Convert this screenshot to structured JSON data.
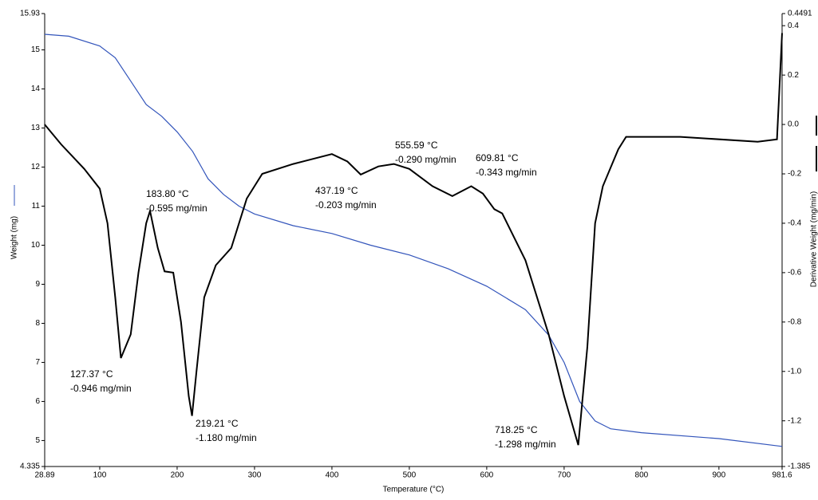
{
  "chart_data": {
    "type": "line",
    "xlabel": "Temperature (°C)",
    "ylabel": "Weight (mg)",
    "y2label": "Derivative Weight (mg/min)",
    "xlim": [
      28.89,
      981.6
    ],
    "xticks": [
      28.89,
      100,
      200,
      300,
      400,
      500,
      600,
      700,
      800,
      900,
      981.6
    ],
    "ylim": [
      4.335,
      15.93
    ],
    "yticks": [
      4.335,
      5,
      6,
      7,
      8,
      9,
      10,
      11,
      12,
      13,
      14,
      15,
      15.93
    ],
    "y2lim": [
      -1.385,
      0.4491
    ],
    "y2ticks": [
      -1.385,
      -1.2,
      {
        "value": -1.0,
        "label": "-1.0"
      },
      -0.8,
      -0.6,
      -0.4,
      -0.2,
      {
        "value": 0.0,
        "label": "0.0"
      },
      0.2,
      0.4,
      0.4491
    ],
    "series": [
      {
        "name": "Weight (mg)",
        "color": "#3355bb",
        "x": [
          28.89,
          60,
          100,
          120,
          140,
          160,
          180,
          200,
          220,
          240,
          260,
          280,
          300,
          350,
          400,
          450,
          500,
          550,
          600,
          650,
          680,
          700,
          720,
          740,
          760,
          800,
          900,
          981.6
        ],
        "values": [
          15.4,
          15.35,
          15.1,
          14.8,
          14.2,
          13.6,
          13.3,
          12.9,
          12.4,
          11.7,
          11.3,
          11.0,
          10.8,
          10.5,
          10.3,
          10.0,
          9.75,
          9.4,
          8.95,
          8.35,
          7.7,
          7.0,
          6.0,
          5.5,
          5.3,
          5.2,
          5.05,
          4.85
        ]
      },
      {
        "name": "Derivative Weight (mg/min)",
        "color": "#000000",
        "axis": "y2",
        "x": [
          28.89,
          50,
          80,
          100,
          110,
          120,
          127.37,
          140,
          150,
          160,
          165,
          175,
          183.8,
          195,
          205,
          215,
          219.21,
          225,
          235,
          250,
          270,
          290,
          310,
          350,
          400,
          420,
          437.19,
          460,
          480,
          500,
          530,
          555.59,
          580,
          595,
          609.81,
          620,
          650,
          680,
          700,
          718.25,
          730,
          740,
          750,
          770,
          780,
          850,
          950,
          975,
          981.6
        ],
        "values": [
          0.0,
          -0.08,
          -0.18,
          -0.26,
          -0.4,
          -0.7,
          -0.946,
          -0.85,
          -0.6,
          -0.4,
          -0.35,
          -0.5,
          -0.595,
          -0.6,
          -0.8,
          -1.1,
          -1.18,
          -1.0,
          -0.7,
          -0.57,
          -0.5,
          -0.3,
          -0.2,
          -0.16,
          -0.12,
          -0.15,
          -0.203,
          -0.17,
          -0.16,
          -0.18,
          -0.25,
          -0.29,
          -0.25,
          -0.28,
          -0.343,
          -0.36,
          -0.55,
          -0.85,
          -1.1,
          -1.298,
          -0.9,
          -0.4,
          -0.25,
          -0.1,
          -0.05,
          -0.05,
          -0.07,
          -0.06,
          0.37
        ]
      }
    ],
    "annotations": [
      {
        "lines": [
          "127.37 °C",
          "-0.946 mg/min"
        ]
      },
      {
        "lines": [
          "183.80 °C",
          "-0.595 mg/min"
        ]
      },
      {
        "lines": [
          "219.21 °C",
          "-1.180 mg/min"
        ]
      },
      {
        "lines": [
          "437.19 °C",
          "-0.203 mg/min"
        ]
      },
      {
        "lines": [
          "555.59 °C",
          "-0.290 mg/min"
        ]
      },
      {
        "lines": [
          "609.81 °C",
          "-0.343 mg/min"
        ]
      },
      {
        "lines": [
          "718.25 °C",
          "-1.298 mg/min"
        ]
      }
    ]
  }
}
